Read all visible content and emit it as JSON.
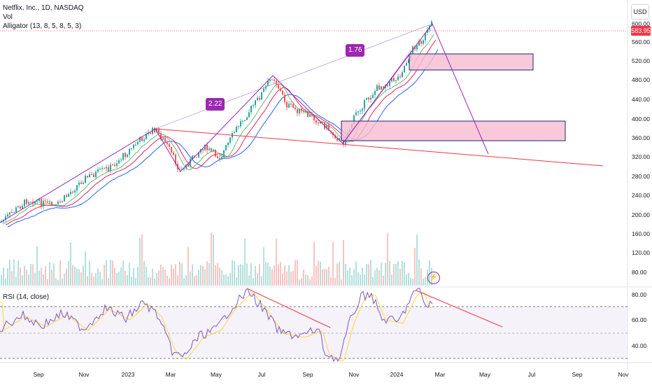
{
  "legend": {
    "title": "Netflix, Inc., 1D, NASDAQ",
    "volume": "Vol",
    "alligator": "Alligator (13, 8, 5, 8, 5, 3)",
    "rsi": "RSI (14, close)"
  },
  "currency": "USD",
  "last_price": "583.95",
  "price_axis_ticks": [
    "600.00",
    "560.00",
    "520.00",
    "480.00",
    "440.00",
    "400.00",
    "360.00",
    "320.00",
    "280.00",
    "240.00",
    "200.00",
    "160.00",
    "120.00",
    "80.00"
  ],
  "rsi_axis_ticks": [
    "80.00",
    "60.00",
    "40.00"
  ],
  "time_axis_ticks": [
    "Sep",
    "Nov",
    "2023",
    "Mar",
    "May",
    "Jul",
    "Sep",
    "Nov",
    "2024",
    "Mar",
    "May",
    "Jul",
    "Sep",
    "Nov"
  ],
  "drawings": {
    "ratio_1": "2.22",
    "ratio_2": "1.76",
    "alert_icon": "lightning-icon"
  },
  "colors": {
    "up": "#26a69a",
    "down": "#ef5350",
    "jaw": "#2962ff",
    "teeth": "#e91e63",
    "lips": "#66bb6a",
    "drawing": "#9c27b0",
    "trendline": "#f23645",
    "zone_fill": "#f8bbd0",
    "rsi_line": "#7e57c2",
    "rsi_ma": "#fdd835"
  }
}
